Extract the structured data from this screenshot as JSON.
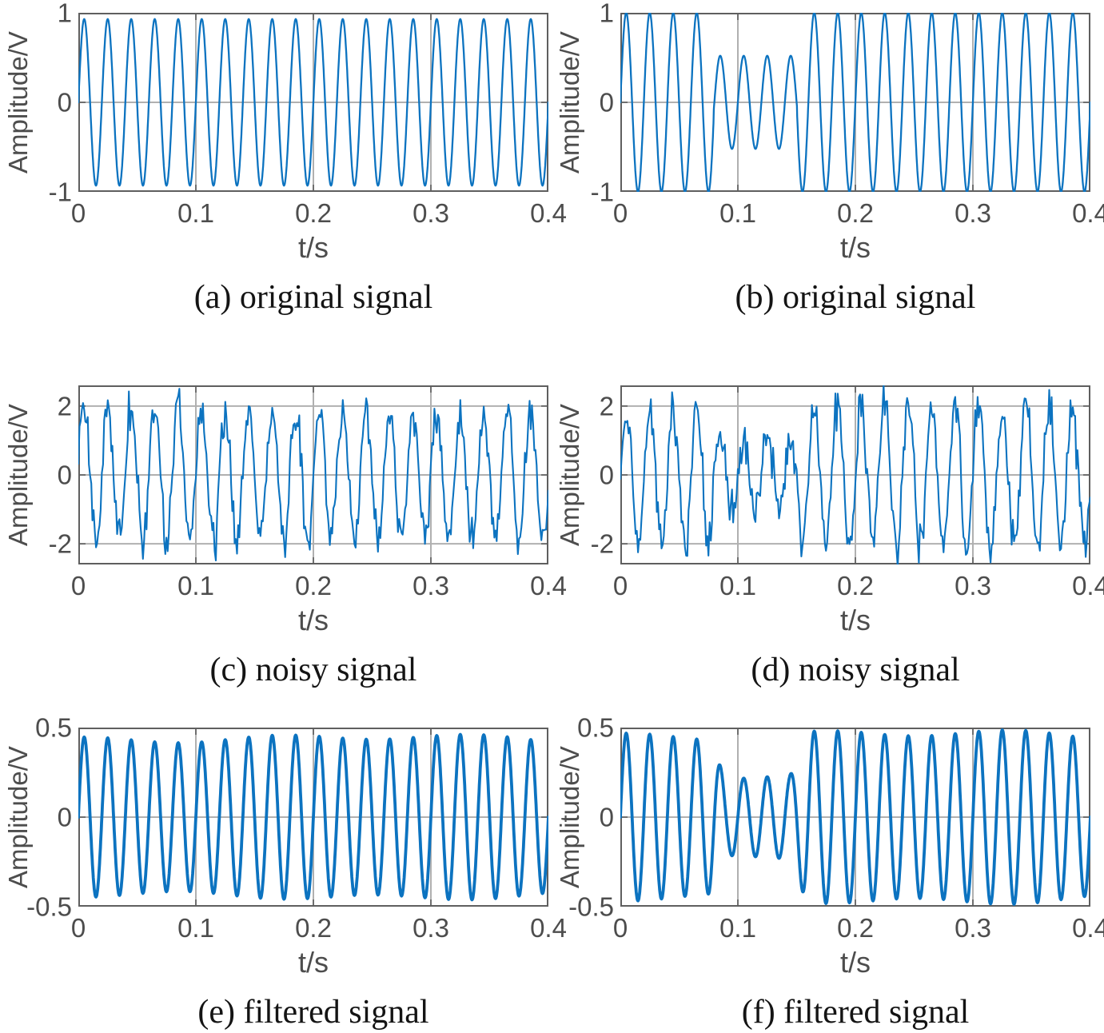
{
  "figure": {
    "background": "#ffffff",
    "line_color": "#0c73c0",
    "box_color": "#5f5f5f",
    "grid_color": "#b0b0b0",
    "axis_text_color": "#4d4d4d",
    "caption_color": "#141414"
  },
  "chart_data": [
    {
      "id": "a",
      "type": "line",
      "caption": "(a) original signal",
      "xlabel": "t/s",
      "ylabel": "Amplitude/V",
      "xlim": [
        0,
        0.4
      ],
      "ylim": [
        -1,
        1
      ],
      "xticks": [
        0,
        0.1,
        0.2,
        0.3,
        0.4
      ],
      "xtick_labels": [
        "0",
        "0.1",
        "0.2",
        "0.3",
        "0.4"
      ],
      "yticks": [
        -1,
        0,
        1
      ],
      "ytick_labels": [
        "-1",
        "0",
        "1"
      ],
      "grid": true,
      "line_width": 2.3,
      "signal": {
        "kind": "sine",
        "freq_hz": 50,
        "duration_s": 0.4,
        "sample_rate_hz": 4000,
        "amplitude_segments": [
          {
            "t_start": 0,
            "t_end": 0.4,
            "amplitude": 0.93
          }
        ],
        "transition_s": 0,
        "noise_sd": 0,
        "noise_seed": 1,
        "amp_wobble": 0
      }
    },
    {
      "id": "b",
      "type": "line",
      "caption": "(b) original signal",
      "xlabel": "t/s",
      "ylabel": "Amplitude/V",
      "xlim": [
        0,
        0.4
      ],
      "ylim": [
        -1,
        1
      ],
      "xticks": [
        0,
        0.1,
        0.2,
        0.3,
        0.4
      ],
      "xtick_labels": [
        "0",
        "0.1",
        "0.2",
        "0.3",
        "0.4"
      ],
      "yticks": [
        -1,
        0,
        1
      ],
      "ytick_labels": [
        "-1",
        "0",
        "1"
      ],
      "grid": true,
      "line_width": 2.3,
      "signal": {
        "kind": "sine-amplitude-keyed",
        "freq_hz": 50,
        "duration_s": 0.4,
        "sample_rate_hz": 4000,
        "amplitude_segments": [
          {
            "t_start": 0,
            "t_end": 0.0795,
            "amplitude": 1.0
          },
          {
            "t_start": 0.0795,
            "t_end": 0.1505,
            "amplitude": 0.52
          },
          {
            "t_start": 0.1505,
            "t_end": 0.4,
            "amplitude": 1.0
          }
        ],
        "transition_s": 0,
        "noise_sd": 0,
        "noise_seed": 2,
        "amp_wobble": 0
      }
    },
    {
      "id": "c",
      "type": "line",
      "caption": "(c) noisy signal",
      "xlabel": "t/s",
      "ylabel": "Amplitude/V",
      "xlim": [
        0,
        0.4
      ],
      "ylim": [
        -2.6,
        2.6
      ],
      "xticks": [
        0,
        0.1,
        0.2,
        0.3,
        0.4
      ],
      "xtick_labels": [
        "0",
        "0.1",
        "0.2",
        "0.3",
        "0.4"
      ],
      "yticks": [
        -2,
        0,
        2
      ],
      "ytick_labels": [
        "-2",
        "0",
        "2"
      ],
      "grid": true,
      "line_width": 2.1,
      "signal": {
        "kind": "sine-plus-noise",
        "freq_hz": 50,
        "duration_s": 0.4,
        "sample_rate_hz": 1000,
        "amplitude_segments": [
          {
            "t_start": 0,
            "t_end": 0.4,
            "amplitude": 1.86
          }
        ],
        "transition_s": 0,
        "noise_sd": 0.27,
        "noise_seed": 11,
        "amp_wobble": 0
      }
    },
    {
      "id": "d",
      "type": "line",
      "caption": "(d) noisy signal",
      "xlabel": "t/s",
      "ylabel": "Amplitude/V",
      "xlim": [
        0,
        0.4
      ],
      "ylim": [
        -2.6,
        2.6
      ],
      "xticks": [
        0,
        0.1,
        0.2,
        0.3,
        0.4
      ],
      "xtick_labels": [
        "0",
        "0.1",
        "0.2",
        "0.3",
        "0.4"
      ],
      "yticks": [
        -2,
        0,
        2
      ],
      "ytick_labels": [
        "-2",
        "0",
        "2"
      ],
      "grid": true,
      "line_width": 2.1,
      "signal": {
        "kind": "sine-amplitude-keyed-plus-noise",
        "freq_hz": 50,
        "duration_s": 0.4,
        "sample_rate_hz": 1000,
        "amplitude_segments": [
          {
            "t_start": 0,
            "t_end": 0.0795,
            "amplitude": 2.0
          },
          {
            "t_start": 0.0795,
            "t_end": 0.1505,
            "amplitude": 1.05
          },
          {
            "t_start": 0.1505,
            "t_end": 0.4,
            "amplitude": 2.0
          }
        ],
        "transition_s": 0,
        "noise_sd": 0.3,
        "noise_seed": 29,
        "amp_wobble": 0
      }
    },
    {
      "id": "e",
      "type": "line",
      "caption": "(e) filtered signal",
      "xlabel": "t/s",
      "ylabel": "Amplitude/V",
      "xlim": [
        0,
        0.4
      ],
      "ylim": [
        -0.5,
        0.5
      ],
      "xticks": [
        0,
        0.1,
        0.2,
        0.3,
        0.4
      ],
      "xtick_labels": [
        "0",
        "0.1",
        "0.2",
        "0.3",
        "0.4"
      ],
      "yticks": [
        -0.5,
        0,
        0.5
      ],
      "ytick_labels": [
        "-0.5",
        "0",
        "0.5"
      ],
      "grid": true,
      "line_width": 3.8,
      "signal": {
        "kind": "filtered-sine",
        "freq_hz": 50,
        "duration_s": 0.4,
        "sample_rate_hz": 4000,
        "amplitude_segments": [
          {
            "t_start": 0,
            "t_end": 0.4,
            "amplitude": 0.44
          }
        ],
        "transition_s": 0,
        "noise_sd": 0,
        "noise_seed": 5,
        "amp_wobble": 0.06
      }
    },
    {
      "id": "f",
      "type": "line",
      "caption": "(f) filtered signal",
      "xlabel": "t/s",
      "ylabel": "Amplitude/V",
      "xlim": [
        0,
        0.4
      ],
      "ylim": [
        -0.5,
        0.5
      ],
      "xticks": [
        0,
        0.1,
        0.2,
        0.3,
        0.4
      ],
      "xtick_labels": [
        "0",
        "0.1",
        "0.2",
        "0.3",
        "0.4"
      ],
      "yticks": [
        -0.5,
        0,
        0.5
      ],
      "ytick_labels": [
        "-0.5",
        "0",
        "0.5"
      ],
      "grid": true,
      "line_width": 3.8,
      "signal": {
        "kind": "filtered-sine-amplitude-keyed",
        "freq_hz": 50,
        "duration_s": 0.4,
        "sample_rate_hz": 4000,
        "amplitude_segments": [
          {
            "t_start": 0,
            "t_end": 0.083,
            "amplitude": 0.46
          },
          {
            "t_start": 0.083,
            "t_end": 0.152,
            "amplitude": 0.23
          },
          {
            "t_start": 0.152,
            "t_end": 0.4,
            "amplitude": 0.46
          }
        ],
        "transition_s": 0.018,
        "noise_sd": 0,
        "noise_seed": 6,
        "amp_wobble": 0.07
      }
    }
  ]
}
